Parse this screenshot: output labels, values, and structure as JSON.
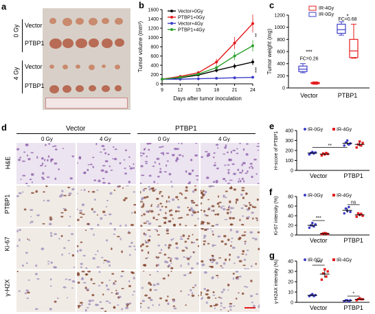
{
  "panels": {
    "a": {
      "label": "a",
      "rows": [
        "Vector",
        "PTBP1",
        "Vector",
        "PTBP1"
      ],
      "doses": [
        "0 Gy",
        "4 Gy"
      ]
    },
    "d": {
      "label": "d",
      "groups": [
        "Vector",
        "PTBP1"
      ],
      "doses": [
        "0 Gy",
        "4 Gy",
        "0 Gy",
        "4 Gy"
      ],
      "stains": [
        "H&E",
        "PTBP1",
        "Ki-67",
        "γ-H2X"
      ]
    }
  },
  "chart_data": [
    {
      "id": "b",
      "label": "b",
      "type": "line",
      "xlabel": "Days after tumor inoculation",
      "ylabel": "Tumor volume (mm³)",
      "x": [
        9,
        12,
        15,
        18,
        21,
        24
      ],
      "xlim": [
        9,
        24
      ],
      "ylim": [
        0,
        1600
      ],
      "yticks": [
        0,
        200,
        400,
        600,
        800,
        1000,
        1200,
        1400,
        1600
      ],
      "series": [
        {
          "name": "Vector+0Gy",
          "color": "#000000",
          "values": [
            100,
            130,
            190,
            290,
            380,
            470
          ]
        },
        {
          "name": "PTBP1+0Gy",
          "color": "#e41a1c",
          "values": [
            100,
            160,
            240,
            470,
            880,
            1300
          ]
        },
        {
          "name": "Vector+4Gy",
          "color": "#3c3cc8",
          "values": [
            100,
            100,
            110,
            120,
            130,
            140
          ]
        },
        {
          "name": "PTBP1+4Gy",
          "color": "#2ca02c",
          "values": [
            100,
            140,
            210,
            350,
            600,
            820
          ]
        }
      ],
      "annotations": [
        "**",
        "***"
      ]
    },
    {
      "id": "c",
      "label": "c",
      "type": "box",
      "ylabel": "Tumor weight (mg)",
      "ylim": [
        0,
        1200
      ],
      "yticks": [
        0,
        200,
        400,
        600,
        800,
        1000,
        1200
      ],
      "categories": [
        "Vector",
        "PTBP1"
      ],
      "legend": [
        {
          "name": "IR-4Gy",
          "color": "#e41a1c"
        },
        {
          "name": "IR-0Gy",
          "color": "#3c3cc8"
        }
      ],
      "boxes": [
        {
          "cat": "Vector",
          "group": "IR-0Gy",
          "min": 250,
          "q1": 270,
          "median": 310,
          "q3": 360,
          "max": 400
        },
        {
          "cat": "Vector",
          "group": "IR-4Gy",
          "min": 60,
          "q1": 70,
          "median": 80,
          "q3": 90,
          "max": 100
        },
        {
          "cat": "PTBP1",
          "group": "IR-0Gy",
          "min": 870,
          "q1": 900,
          "median": 960,
          "q3": 1050,
          "max": 1090
        },
        {
          "cat": "PTBP1",
          "group": "IR-4Gy",
          "min": 490,
          "q1": 500,
          "median": 610,
          "q3": 800,
          "max": 1050
        }
      ],
      "annotations": [
        "***",
        "FC=0.26",
        "*",
        "FC=0.68"
      ]
    },
    {
      "id": "e",
      "label": "e",
      "type": "scatter",
      "ylabel": "H-score of PTBP1",
      "ylim": [
        0,
        400
      ],
      "yticks": [
        0,
        100,
        200,
        300,
        400
      ],
      "categories": [
        "Vector",
        "PTBP1"
      ],
      "series": [
        {
          "name": "IR-0Gy",
          "color": "#3c3cc8",
          "Vector": [
            160,
            175,
            185,
            170,
            180
          ],
          "PTBP1": [
            250,
            280,
            300,
            260,
            270
          ]
        },
        {
          "name": "IR-4Gy",
          "color": "#e41a1c",
          "Vector": [
            150,
            170,
            160,
            175,
            165
          ],
          "PTBP1": [
            230,
            260,
            290,
            250,
            275
          ]
        }
      ],
      "annotations": [
        "**"
      ]
    },
    {
      "id": "f",
      "label": "f",
      "type": "scatter",
      "ylabel": "Ki-67 intensity (%)",
      "ylim": [
        0,
        80
      ],
      "yticks": [
        0,
        20,
        40,
        60,
        80
      ],
      "categories": [
        "Vector",
        "PTBP1"
      ],
      "series": [
        {
          "name": "IR-0Gy",
          "color": "#3c3cc8",
          "Vector": [
            15,
            20,
            25,
            18,
            22
          ],
          "PTBP1": [
            45,
            55,
            50,
            58,
            48
          ]
        },
        {
          "name": "IR-4Gy",
          "color": "#e41a1c",
          "Vector": [
            2,
            3,
            4,
            3,
            2
          ],
          "PTBP1": [
            38,
            45,
            42,
            44,
            40
          ]
        }
      ],
      "annotations": [
        "***",
        "ns"
      ]
    },
    {
      "id": "g",
      "label": "g",
      "type": "scatter",
      "ylabel": "γ-H2AX intensity (%)",
      "ylim": [
        0,
        40
      ],
      "yticks": [
        0,
        10,
        20,
        30,
        40
      ],
      "categories": [
        "Vector",
        "PTBP1"
      ],
      "series": [
        {
          "name": "IR-0Gy",
          "color": "#3c3cc8",
          "Vector": [
            6,
            7,
            8,
            6,
            7
          ],
          "PTBP1": [
            1,
            2,
            2,
            1,
            2
          ]
        },
        {
          "name": "IR-4Gy",
          "color": "#e41a1c",
          "Vector": [
            22,
            28,
            32,
            25,
            30
          ],
          "PTBP1": [
            2,
            3,
            4,
            3,
            3
          ]
        }
      ],
      "annotations": [
        "***",
        "*"
      ]
    }
  ]
}
